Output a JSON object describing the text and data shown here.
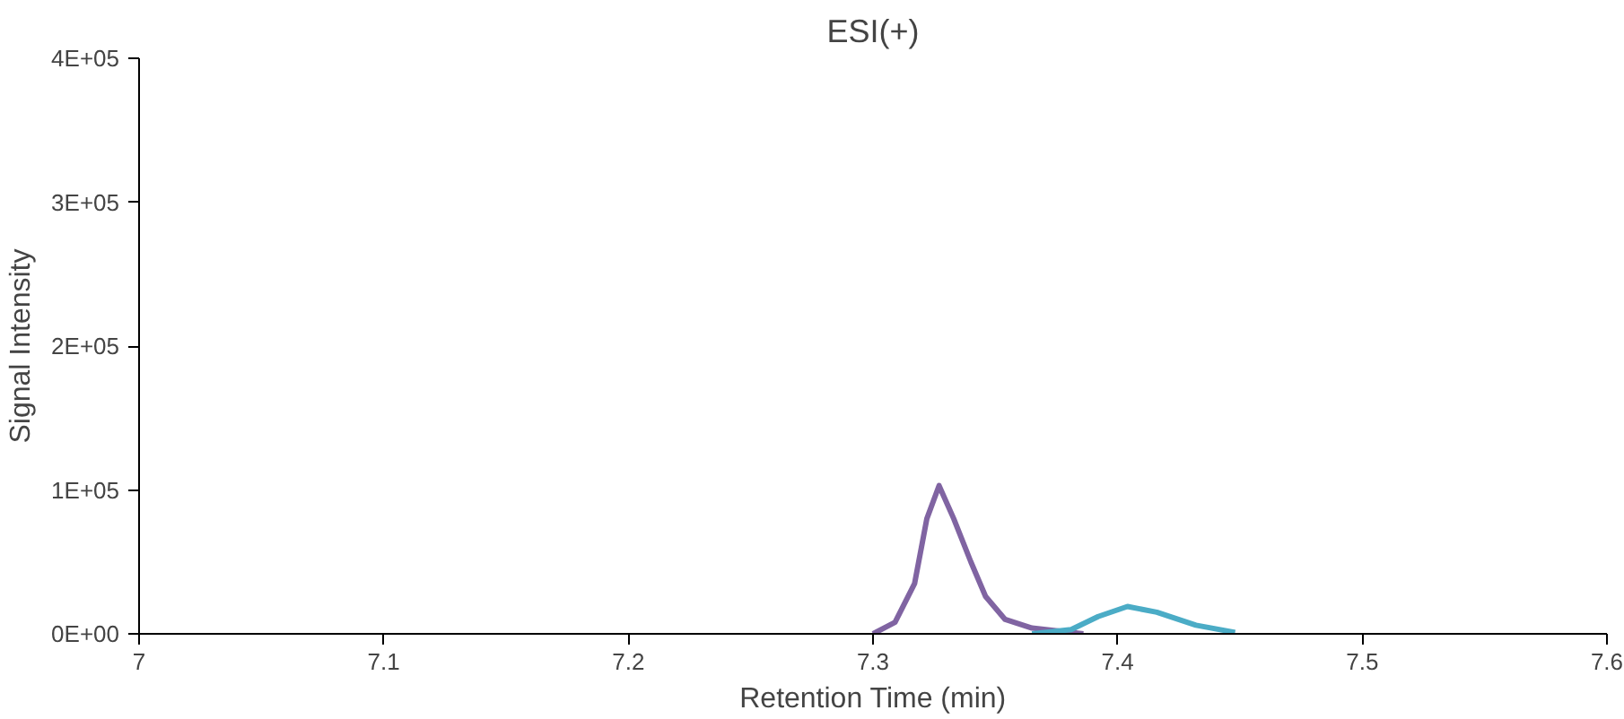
{
  "chart_data": {
    "type": "line",
    "title": "ESI(+)",
    "xlabel": "Retention Time (min)",
    "ylabel": "Signal Intensity",
    "xlim": [
      7,
      7.6
    ],
    "xticks": [
      7,
      7.1,
      7.2,
      7.3,
      7.4,
      7.5,
      7.6
    ],
    "ylim": [
      0,
      400000
    ],
    "yticks": [
      {
        "value": 0,
        "label": "0E+00"
      },
      {
        "value": 100000,
        "label": "1E+05"
      },
      {
        "value": 200000,
        "label": "2E+05"
      },
      {
        "value": 300000,
        "label": "3E+05"
      },
      {
        "value": 400000,
        "label": "4E+05"
      }
    ],
    "grid": false,
    "series": [
      {
        "color": "#8064a2",
        "x": [
          7.3,
          7.309,
          7.317,
          7.322,
          7.327,
          7.333,
          7.34,
          7.346,
          7.354,
          7.365,
          7.386
        ],
        "values": [
          0,
          8000,
          35000,
          80000,
          103000,
          80000,
          50000,
          26000,
          10000,
          4000,
          0
        ]
      },
      {
        "color": "#4bacc6",
        "x": [
          7.365,
          7.381,
          7.392,
          7.404,
          7.416,
          7.432,
          7.448
        ],
        "values": [
          0,
          3000,
          12000,
          19000,
          15000,
          6000,
          1000
        ]
      }
    ]
  }
}
